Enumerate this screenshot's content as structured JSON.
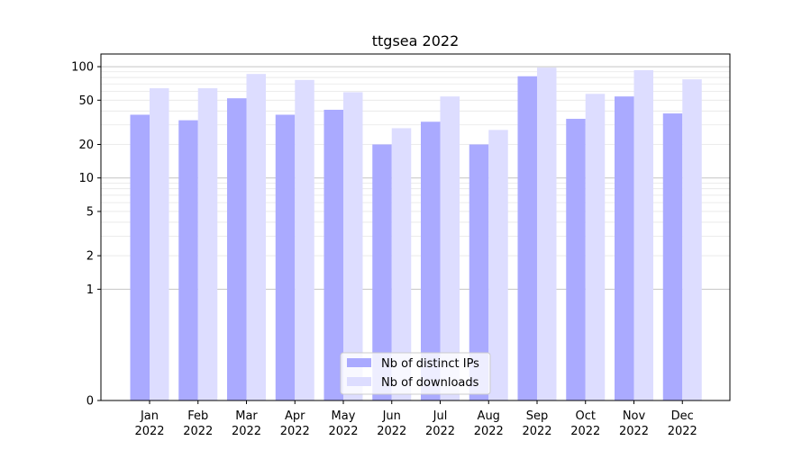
{
  "chart_data": {
    "type": "bar",
    "title": "ttgsea 2022",
    "xlabel": "",
    "ylabel": "",
    "yscale": "symlog",
    "ylim": [
      0,
      130
    ],
    "yticks": [
      0,
      1,
      2,
      5,
      10,
      20,
      50,
      100
    ],
    "ytick_labels": [
      "0",
      "1",
      "2",
      "5",
      "10",
      "20",
      "50",
      "100"
    ],
    "grid": true,
    "categories": [
      "Jan\n2022",
      "Feb\n2022",
      "Mar\n2022",
      "Apr\n2022",
      "May\n2022",
      "Jun\n2022",
      "Jul\n2022",
      "Aug\n2022",
      "Sep\n2022",
      "Oct\n2022",
      "Nov\n2022",
      "Dec\n2022"
    ],
    "category_lines": [
      [
        "Jan",
        "2022"
      ],
      [
        "Feb",
        "2022"
      ],
      [
        "Mar",
        "2022"
      ],
      [
        "Apr",
        "2022"
      ],
      [
        "May",
        "2022"
      ],
      [
        "Jun",
        "2022"
      ],
      [
        "Jul",
        "2022"
      ],
      [
        "Aug",
        "2022"
      ],
      [
        "Sep",
        "2022"
      ],
      [
        "Oct",
        "2022"
      ],
      [
        "Nov",
        "2022"
      ],
      [
        "Dec",
        "2022"
      ]
    ],
    "series": [
      {
        "name": "Nb of distinct IPs",
        "color": "#aaaaff",
        "values": [
          37,
          33,
          52,
          37,
          41,
          20,
          32,
          20,
          82,
          34,
          54,
          38
        ]
      },
      {
        "name": "Nb of downloads",
        "color": "#ddddff",
        "values": [
          64,
          64,
          86,
          76,
          59,
          28,
          54,
          27,
          98,
          57,
          93,
          77
        ]
      }
    ],
    "legend_position": "lower center"
  }
}
